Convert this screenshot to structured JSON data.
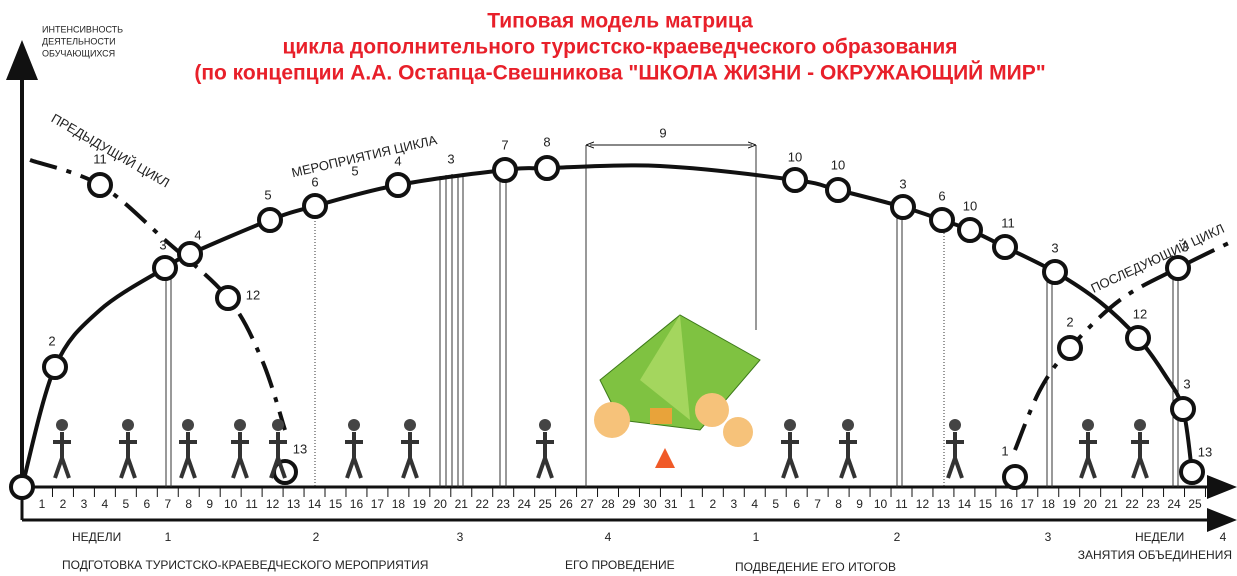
{
  "title": [
    "Типовая модель матрица",
    "цикла дополнительного туристско-краеведческого образования",
    "(по концепции А.А. Остапца-Свешникова \"ШКОЛА ЖИЗНИ - ОКРУЖАЮЩИЙ МИР\""
  ],
  "y_axis_label": [
    "ИНТЕНСИВНОСТЬ",
    "ДЕЯТЕЛЬНОСТИ",
    "ОБУЧАЮЩИХСЯ"
  ],
  "curve_labels": {
    "previous": "ПРЕДЫДУЩИЙ ЦИКЛ",
    "events": "МЕРОПРИЯТИЯ ЦИКЛА",
    "next": "ПОСЛЕДУЮЩИЙ ЦИКЛ"
  },
  "main_nodes": [
    "2",
    "3",
    "4",
    "5",
    "6",
    "5",
    "4",
    "3",
    "7",
    "8",
    "10",
    "10",
    "3",
    "6",
    "10",
    "11",
    "3",
    "12",
    "3",
    "13"
  ],
  "interval_label": "9",
  "previous_nodes": [
    "11",
    "12",
    "13"
  ],
  "next_nodes": [
    "1",
    "2",
    "3"
  ],
  "weeks": [
    1,
    2,
    3,
    4,
    5,
    6,
    7,
    8,
    9,
    10,
    11,
    12,
    13,
    14,
    15,
    16,
    17,
    18,
    19,
    20,
    21,
    22,
    23,
    24,
    25,
    26,
    27,
    28,
    29,
    30,
    31,
    1,
    2,
    3,
    4,
    5,
    6,
    7,
    8,
    9,
    10,
    11,
    12,
    13,
    14,
    15,
    16,
    17,
    18,
    19,
    20,
    21,
    22,
    23,
    24,
    25
  ],
  "month_labels": [
    "НЕДЕЛИ",
    "1",
    "2",
    "3",
    "4",
    "1",
    "2",
    "3",
    "НЕДЕЛИ",
    "4"
  ],
  "phases": [
    "ПОДГОТОВКА ТУРИСТСКО-КРАЕВЕДЧЕСКОГО МЕРОПРИЯТИЯ",
    "ЕГО ПРОВЕДЕНИЕ",
    "ПОДВЕДЕНИЕ ЕГО ИТОГОВ",
    "ЗАНЯТИЯ ОБЪЕДИНЕНИЯ"
  ]
}
